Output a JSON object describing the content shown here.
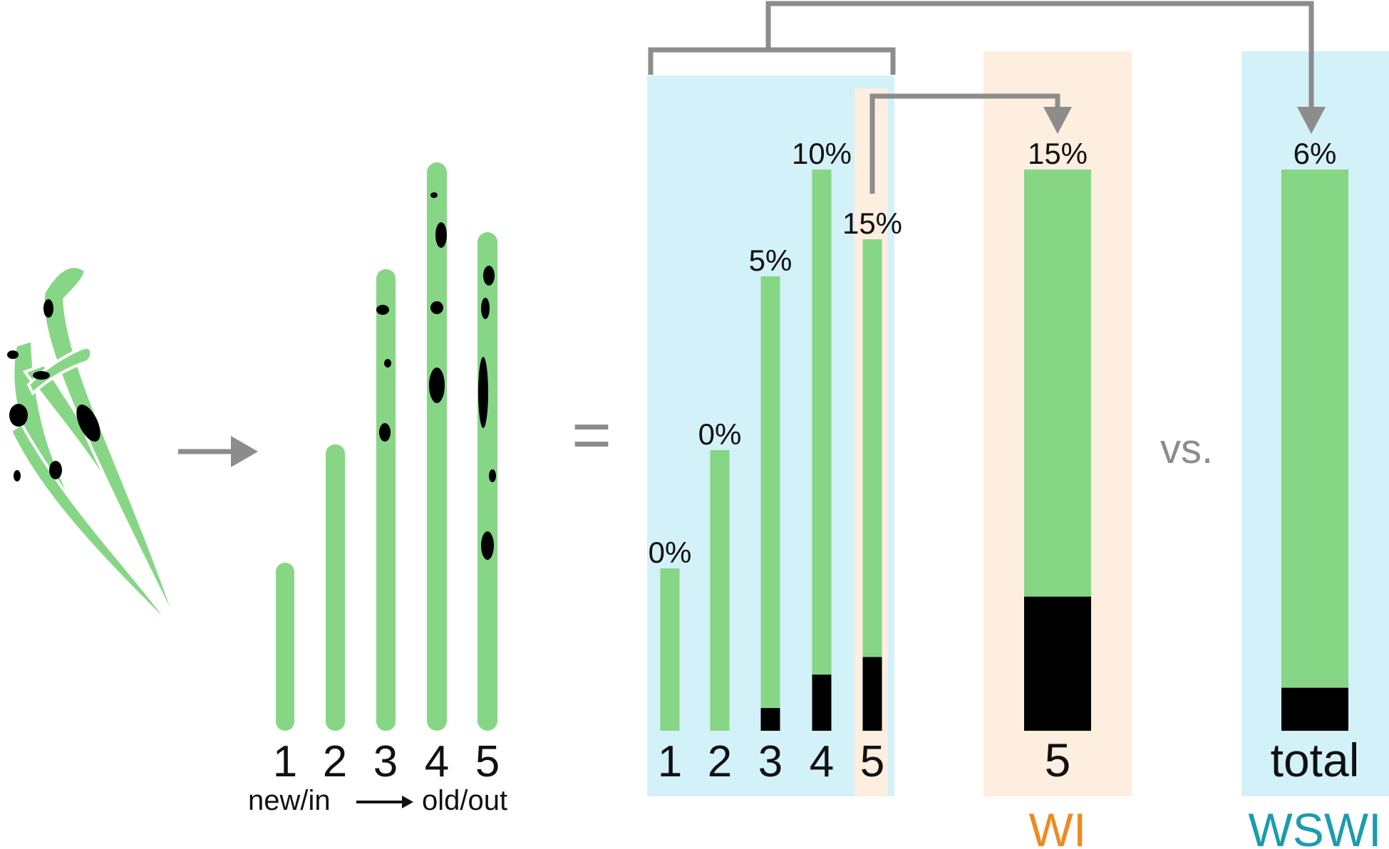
{
  "colors": {
    "leaf_green": "#86d686",
    "damage": "#000000",
    "arrow_gray": "#8c8c8c",
    "panel_blue": "#d3f1f8",
    "panel_orange": "#fdeee0",
    "wi_orange": "#f0891e",
    "wswi_teal": "#1a9cb0"
  },
  "leaves": {
    "labels": [
      "1",
      "2",
      "3",
      "4",
      "5"
    ],
    "axis_left": "new/in",
    "axis_right": "old/out"
  },
  "equals_sign": "=",
  "vs_label": "vs.",
  "chart_data": [
    {
      "type": "bar",
      "categories": [
        "1",
        "2",
        "3",
        "4",
        "5"
      ],
      "values": [
        0,
        0,
        5,
        10,
        15
      ],
      "value_labels": [
        "0%",
        "0%",
        "5%",
        "10%",
        "15%"
      ],
      "stacked_bar_heights": [
        37,
        55,
        85,
        100,
        88
      ]
    },
    {
      "type": "bar",
      "categories": [
        "5"
      ],
      "values": [
        15
      ],
      "value_labels": [
        "15%"
      ],
      "group_label": "WI"
    },
    {
      "type": "bar",
      "categories": [
        "total"
      ],
      "values": [
        6
      ],
      "value_labels": [
        "6%"
      ],
      "group_label": "WSWI"
    }
  ]
}
